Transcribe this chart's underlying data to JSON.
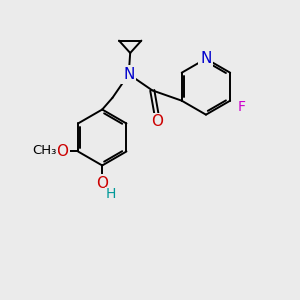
{
  "background_color": "#ebebeb",
  "bond_color": "#000000",
  "atom_colors": {
    "N": "#0000cc",
    "O": "#cc0000",
    "F": "#cc00cc",
    "C": "#000000",
    "H": "#009999"
  },
  "font_size": 10,
  "bond_width": 1.4,
  "fig_size": [
    3.0,
    3.0
  ],
  "dpi": 100
}
